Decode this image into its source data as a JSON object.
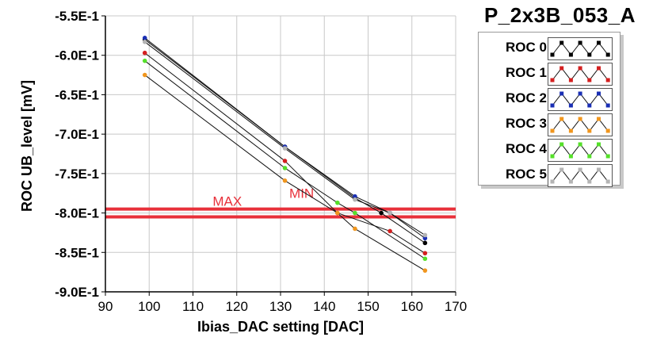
{
  "title": "P_2x3B_053_A",
  "chart_data": {
    "type": "line",
    "xlabel": "Ibias_DAC setting [DAC]",
    "ylabel": "ROC UB_level [mV]",
    "xlim": [
      90,
      170
    ],
    "ylim": [
      -0.9,
      -0.55
    ],
    "xticks": [
      90,
      100,
      110,
      120,
      130,
      140,
      150,
      160,
      170
    ],
    "yticks": [
      {
        "v": -0.55,
        "label": "-5.5E-1"
      },
      {
        "v": -0.6,
        "label": "-6.0E-1"
      },
      {
        "v": -0.65,
        "label": "-6.5E-1"
      },
      {
        "v": -0.7,
        "label": "-7.0E-1"
      },
      {
        "v": -0.75,
        "label": "-7.5E-1"
      },
      {
        "v": -0.8,
        "label": "-8.0E-1"
      },
      {
        "v": -0.85,
        "label": "-8.5E-1"
      },
      {
        "v": -0.9,
        "label": "-9.0E-1"
      }
    ],
    "grid": true,
    "hlines": [
      {
        "label": "MAX",
        "y": -0.795,
        "color": "#e8303a"
      },
      {
        "label": "MIN",
        "y": -0.805,
        "color": "#e8303a"
      }
    ],
    "annotations": [
      {
        "text": "MAX",
        "x": 114.5,
        "y": -0.791,
        "color": "#e8303a"
      },
      {
        "text": "MIN",
        "x": 132.0,
        "y": -0.781,
        "color": "#e8303a"
      }
    ],
    "series": [
      {
        "name": "ROC 0",
        "color": "#000000",
        "x": [
          99,
          131,
          147,
          153,
          163
        ],
        "y": [
          -0.58,
          -0.716,
          -0.781,
          -0.8,
          -0.838
        ]
      },
      {
        "name": "ROC 1",
        "color": "#d42020",
        "x": [
          99,
          131,
          143,
          155,
          163
        ],
        "y": [
          -0.597,
          -0.734,
          -0.8,
          -0.823,
          -0.851
        ]
      },
      {
        "name": "ROC 2",
        "color": "#1a2fb4",
        "x": [
          99,
          131,
          147,
          155,
          163
        ],
        "y": [
          -0.578,
          -0.716,
          -0.779,
          -0.8,
          -0.832
        ]
      },
      {
        "name": "ROC 3",
        "color": "#f0961e",
        "x": [
          99,
          131,
          143,
          147,
          163
        ],
        "y": [
          -0.625,
          -0.759,
          -0.8,
          -0.82,
          -0.873
        ]
      },
      {
        "name": "ROC 4",
        "color": "#55e02a",
        "x": [
          99,
          131,
          143,
          147,
          163
        ],
        "y": [
          -0.607,
          -0.743,
          -0.787,
          -0.8,
          -0.858
        ]
      },
      {
        "name": "ROC 5",
        "color": "#b4b4b4",
        "x": [
          99,
          131,
          147,
          155,
          163
        ],
        "y": [
          -0.583,
          -0.718,
          -0.783,
          -0.8,
          -0.828
        ]
      }
    ]
  },
  "legend": {
    "entries": [
      {
        "label": "ROC 0",
        "color": "#000000"
      },
      {
        "label": "ROC 1",
        "color": "#d42020"
      },
      {
        "label": "ROC 2",
        "color": "#1a2fb4"
      },
      {
        "label": "ROC 3",
        "color": "#f0961e"
      },
      {
        "label": "ROC 4",
        "color": "#55e02a"
      },
      {
        "label": "ROC 5",
        "color": "#b4b4b4"
      }
    ]
  }
}
